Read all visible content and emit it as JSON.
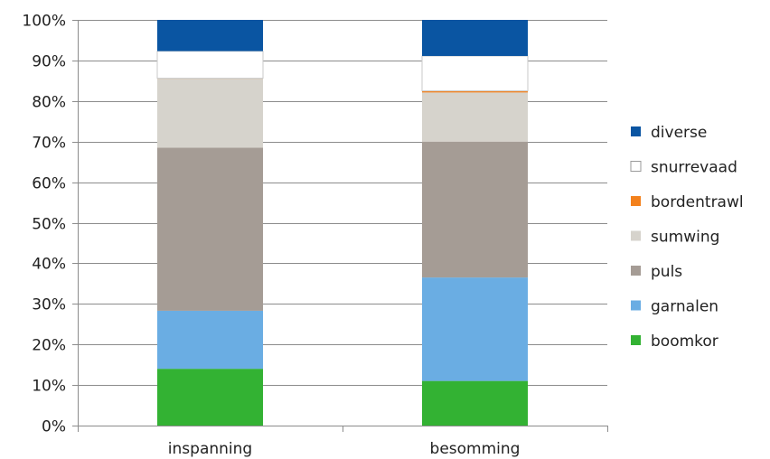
{
  "chart_data": {
    "type": "bar",
    "stacked": true,
    "percent": true,
    "categories": [
      "inspanning",
      "besomming"
    ],
    "y_ticks": [
      "0%",
      "10%",
      "20%",
      "30%",
      "40%",
      "50%",
      "60%",
      "70%",
      "80%",
      "90%",
      "100%"
    ],
    "ylim": [
      0,
      100
    ],
    "grid": true,
    "legend_position": "right",
    "series": [
      {
        "name": "boomkor",
        "color": "#33b233",
        "values": [
          14,
          11
        ]
      },
      {
        "name": "garnalen",
        "color": "#6aade3",
        "values": [
          14.3,
          25.5
        ]
      },
      {
        "name": "puls",
        "color": "#a59c95",
        "values": [
          40.2,
          33.5
        ]
      },
      {
        "name": "sumwing",
        "color": "#d6d3cc",
        "values": [
          17,
          12.1
        ]
      },
      {
        "name": "bordentrawl",
        "color": "#f3811c",
        "values": [
          0.1,
          0.4
        ]
      },
      {
        "name": "snurrevaad",
        "color": "#ffffff",
        "values": [
          6.7,
          8.6
        ]
      },
      {
        "name": "diverse",
        "color": "#0a55a2",
        "values": [
          7.7,
          8.9
        ]
      }
    ],
    "legend_order": [
      "diverse",
      "snurrevaad",
      "bordentrawl",
      "sumwing",
      "puls",
      "garnalen",
      "boomkor"
    ]
  }
}
